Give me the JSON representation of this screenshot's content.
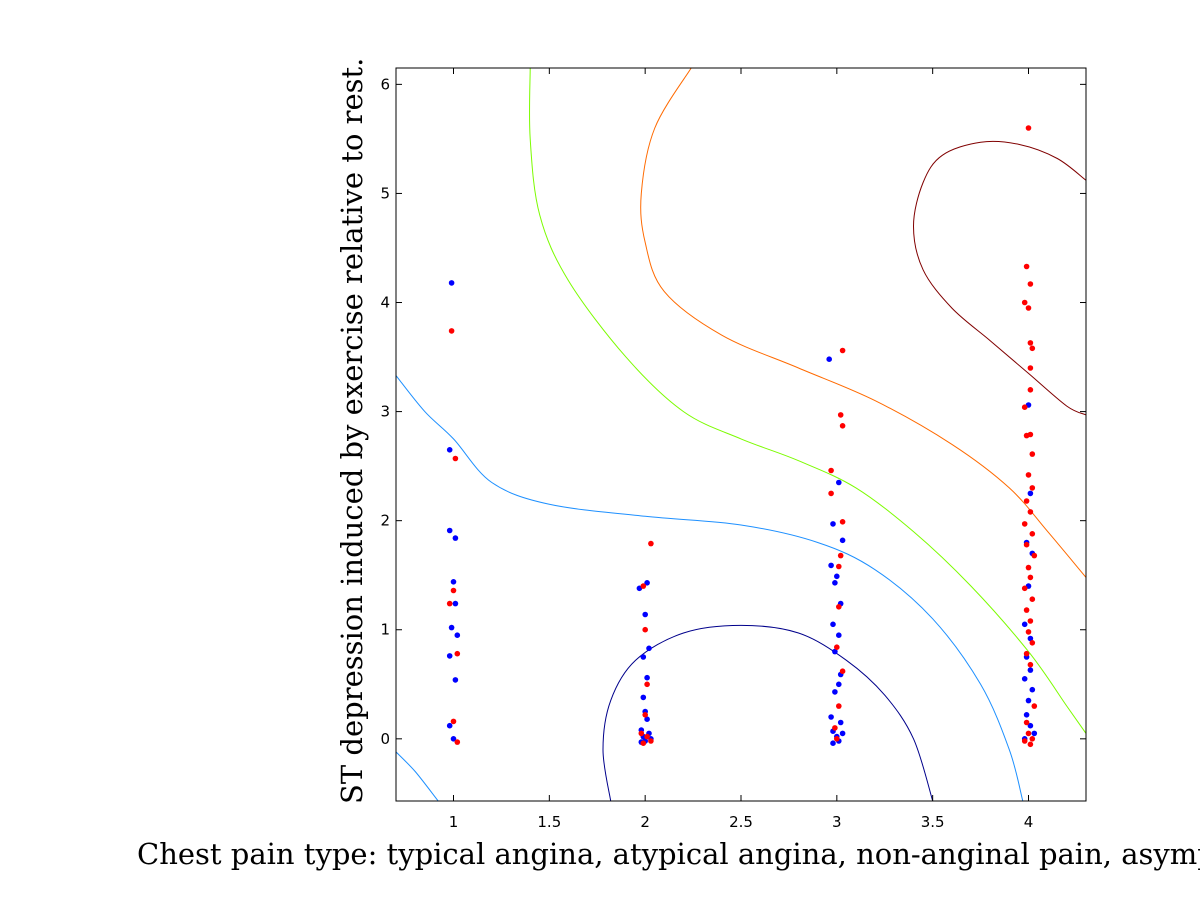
{
  "chart_data": {
    "type": "scatter",
    "title": "",
    "xlabel": "Chest pain type: typical angina, atypical angina, non-anginal pain, asymptomatic",
    "ylabel": "ST depression induced by exercise relative to rest.",
    "xlim": [
      0.7,
      4.3
    ],
    "ylim": [
      -0.57,
      6.15
    ],
    "xticks": [
      1,
      1.5,
      2,
      2.5,
      3,
      3.5,
      4
    ],
    "xtick_labels": [
      "1",
      "1.5",
      "2",
      "2.5",
      "3",
      "3.5",
      "4"
    ],
    "yticks": [
      0,
      1,
      2,
      3,
      4,
      5,
      6
    ],
    "ytick_labels": [
      "0",
      "1",
      "2",
      "3",
      "4",
      "5",
      "6"
    ],
    "grid": false,
    "series": [
      {
        "color": "#0000ff",
        "points": [
          [
            0.99,
            4.18
          ],
          [
            0.98,
            2.65
          ],
          [
            0.98,
            1.91
          ],
          [
            1.01,
            1.84
          ],
          [
            1.0,
            1.44
          ],
          [
            1.01,
            1.24
          ],
          [
            0.99,
            1.02
          ],
          [
            1.02,
            0.95
          ],
          [
            0.98,
            0.76
          ],
          [
            1.01,
            0.54
          ],
          [
            0.98,
            0.12
          ],
          [
            1.0,
            0.0
          ],
          [
            1.97,
            1.38
          ],
          [
            2.01,
            1.43
          ],
          [
            2.0,
            1.14
          ],
          [
            1.99,
            0.75
          ],
          [
            2.02,
            0.83
          ],
          [
            2.01,
            0.56
          ],
          [
            1.99,
            0.38
          ],
          [
            2.0,
            0.25
          ],
          [
            2.01,
            0.18
          ],
          [
            1.98,
            0.08
          ],
          [
            2.02,
            0.05
          ],
          [
            1.99,
            0.02
          ],
          [
            2.03,
            0.0
          ],
          [
            2.0,
            -0.02
          ],
          [
            1.98,
            -0.03
          ],
          [
            2.96,
            3.48
          ],
          [
            2.98,
            1.97
          ],
          [
            3.01,
            2.35
          ],
          [
            3.03,
            1.82
          ],
          [
            2.97,
            1.59
          ],
          [
            3.0,
            1.49
          ],
          [
            2.99,
            1.43
          ],
          [
            3.02,
            1.24
          ],
          [
            2.98,
            1.05
          ],
          [
            3.01,
            0.95
          ],
          [
            2.99,
            0.8
          ],
          [
            3.02,
            0.59
          ],
          [
            3.01,
            0.5
          ],
          [
            2.99,
            0.43
          ],
          [
            2.97,
            0.2
          ],
          [
            3.02,
            0.15
          ],
          [
            2.98,
            0.07
          ],
          [
            3.03,
            0.05
          ],
          [
            3.0,
            0.02
          ],
          [
            3.01,
            -0.02
          ],
          [
            2.98,
            -0.04
          ],
          [
            4.0,
            3.06
          ],
          [
            4.01,
            2.25
          ],
          [
            3.99,
            1.8
          ],
          [
            4.02,
            1.7
          ],
          [
            4.0,
            1.4
          ],
          [
            3.98,
            1.05
          ],
          [
            4.01,
            0.92
          ],
          [
            3.99,
            0.75
          ],
          [
            4.01,
            0.63
          ],
          [
            3.98,
            0.55
          ],
          [
            4.02,
            0.45
          ],
          [
            4.0,
            0.35
          ],
          [
            3.99,
            0.22
          ],
          [
            4.01,
            0.12
          ],
          [
            4.03,
            0.05
          ],
          [
            3.98,
            0.0
          ]
        ]
      },
      {
        "color": "#ff0000",
        "points": [
          [
            0.99,
            3.74
          ],
          [
            1.01,
            2.57
          ],
          [
            1.0,
            1.36
          ],
          [
            0.98,
            1.24
          ],
          [
            1.02,
            0.78
          ],
          [
            1.0,
            0.16
          ],
          [
            1.02,
            -0.03
          ],
          [
            2.03,
            1.79
          ],
          [
            1.99,
            1.4
          ],
          [
            2.0,
            1.0
          ],
          [
            2.01,
            0.5
          ],
          [
            2.0,
            0.22
          ],
          [
            1.98,
            0.05
          ],
          [
            2.01,
            0.02
          ],
          [
            2.03,
            -0.02
          ],
          [
            1.99,
            -0.04
          ],
          [
            3.03,
            3.56
          ],
          [
            3.02,
            2.97
          ],
          [
            3.03,
            2.87
          ],
          [
            2.97,
            2.46
          ],
          [
            2.97,
            2.25
          ],
          [
            3.03,
            1.99
          ],
          [
            3.02,
            1.68
          ],
          [
            3.01,
            1.58
          ],
          [
            3.01,
            1.21
          ],
          [
            3.0,
            0.84
          ],
          [
            3.03,
            0.62
          ],
          [
            3.01,
            0.3
          ],
          [
            3.0,
            0.0
          ],
          [
            2.99,
            0.1
          ],
          [
            4.0,
            5.6
          ],
          [
            3.99,
            4.33
          ],
          [
            4.01,
            4.17
          ],
          [
            3.98,
            4.0
          ],
          [
            4.0,
            3.95
          ],
          [
            4.01,
            3.63
          ],
          [
            4.02,
            3.58
          ],
          [
            4.01,
            3.4
          ],
          [
            4.01,
            3.2
          ],
          [
            3.98,
            3.04
          ],
          [
            3.99,
            2.78
          ],
          [
            4.01,
            2.79
          ],
          [
            4.02,
            2.61
          ],
          [
            4.0,
            2.42
          ],
          [
            4.02,
            2.3
          ],
          [
            3.99,
            2.18
          ],
          [
            4.01,
            2.08
          ],
          [
            3.98,
            1.97
          ],
          [
            4.02,
            1.88
          ],
          [
            3.99,
            1.78
          ],
          [
            4.03,
            1.68
          ],
          [
            4.0,
            1.57
          ],
          [
            4.01,
            1.48
          ],
          [
            3.98,
            1.38
          ],
          [
            4.02,
            1.28
          ],
          [
            3.99,
            1.18
          ],
          [
            4.01,
            1.08
          ],
          [
            4.0,
            0.98
          ],
          [
            4.02,
            0.88
          ],
          [
            3.99,
            0.78
          ],
          [
            4.01,
            0.68
          ],
          [
            4.03,
            0.3
          ],
          [
            3.99,
            0.15
          ],
          [
            4.0,
            0.05
          ],
          [
            4.02,
            0.0
          ],
          [
            3.98,
            -0.02
          ],
          [
            4.01,
            -0.05
          ]
        ]
      }
    ],
    "contours": [
      {
        "color": "#00008b",
        "points": [
          [
            1.82,
            -0.57
          ],
          [
            1.78,
            -0.1
          ],
          [
            1.82,
            0.35
          ],
          [
            1.95,
            0.72
          ],
          [
            2.2,
            0.97
          ],
          [
            2.5,
            1.04
          ],
          [
            2.8,
            0.97
          ],
          [
            3.05,
            0.72
          ],
          [
            3.25,
            0.4
          ],
          [
            3.4,
            0.0
          ],
          [
            3.5,
            -0.57
          ]
        ]
      },
      {
        "color": "#1e90ff",
        "points": [
          [
            0.7,
            3.33
          ],
          [
            0.85,
            3.0
          ],
          [
            1.0,
            2.75
          ],
          [
            1.2,
            2.35
          ],
          [
            1.5,
            2.15
          ],
          [
            2.0,
            2.04
          ],
          [
            2.5,
            1.96
          ],
          [
            2.9,
            1.8
          ],
          [
            3.2,
            1.55
          ],
          [
            3.5,
            1.1
          ],
          [
            3.75,
            0.5
          ],
          [
            3.9,
            -0.1
          ],
          [
            3.97,
            -0.57
          ]
        ]
      },
      {
        "color": "#1e90ff",
        "points": [
          [
            0.7,
            -0.12
          ],
          [
            0.8,
            -0.3
          ],
          [
            0.92,
            -0.57
          ]
        ]
      },
      {
        "color": "#7cfc00",
        "points": [
          [
            1.4,
            6.15
          ],
          [
            1.4,
            5.5
          ],
          [
            1.45,
            4.8
          ],
          [
            1.6,
            4.2
          ],
          [
            1.9,
            3.5
          ],
          [
            2.2,
            3.0
          ],
          [
            2.5,
            2.75
          ],
          [
            2.8,
            2.55
          ],
          [
            3.1,
            2.3
          ],
          [
            3.4,
            1.9
          ],
          [
            3.7,
            1.4
          ],
          [
            4.0,
            0.8
          ],
          [
            4.2,
            0.3
          ],
          [
            4.3,
            0.05
          ]
        ]
      },
      {
        "color": "#ff6a00",
        "points": [
          [
            2.24,
            6.15
          ],
          [
            2.05,
            5.6
          ],
          [
            1.98,
            5.0
          ],
          [
            2.0,
            4.55
          ],
          [
            2.1,
            4.1
          ],
          [
            2.4,
            3.7
          ],
          [
            2.8,
            3.4
          ],
          [
            3.2,
            3.1
          ],
          [
            3.6,
            2.7
          ],
          [
            3.9,
            2.3
          ],
          [
            4.1,
            1.9
          ],
          [
            4.3,
            1.48
          ]
        ]
      },
      {
        "color": "#800000",
        "points": [
          [
            4.3,
            5.12
          ],
          [
            4.15,
            5.32
          ],
          [
            3.95,
            5.45
          ],
          [
            3.75,
            5.47
          ],
          [
            3.55,
            5.35
          ],
          [
            3.45,
            5.1
          ],
          [
            3.4,
            4.7
          ],
          [
            3.45,
            4.3
          ],
          [
            3.6,
            3.95
          ],
          [
            3.8,
            3.65
          ],
          [
            4.0,
            3.35
          ],
          [
            4.2,
            3.05
          ],
          [
            4.3,
            2.97
          ]
        ]
      }
    ]
  }
}
